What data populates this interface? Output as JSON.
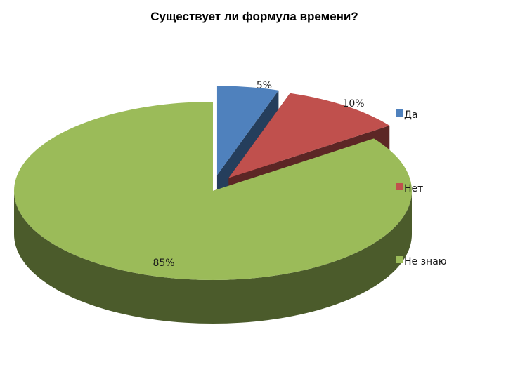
{
  "chart_data": {
    "type": "pie",
    "title": "Существует ли формула времени?",
    "categories": [
      "Да",
      "Нет",
      "Не знаю"
    ],
    "values": [
      5,
      10,
      85
    ],
    "labels": [
      "5%",
      "10%",
      "85%"
    ],
    "colors": {
      "top": [
        "#4f81bd",
        "#c0504d",
        "#9bbb59"
      ],
      "side": [
        "#253e5c",
        "#5c2625",
        "#4b5b2b"
      ]
    },
    "exploded": true,
    "three_d": true,
    "legend_position": "right"
  }
}
